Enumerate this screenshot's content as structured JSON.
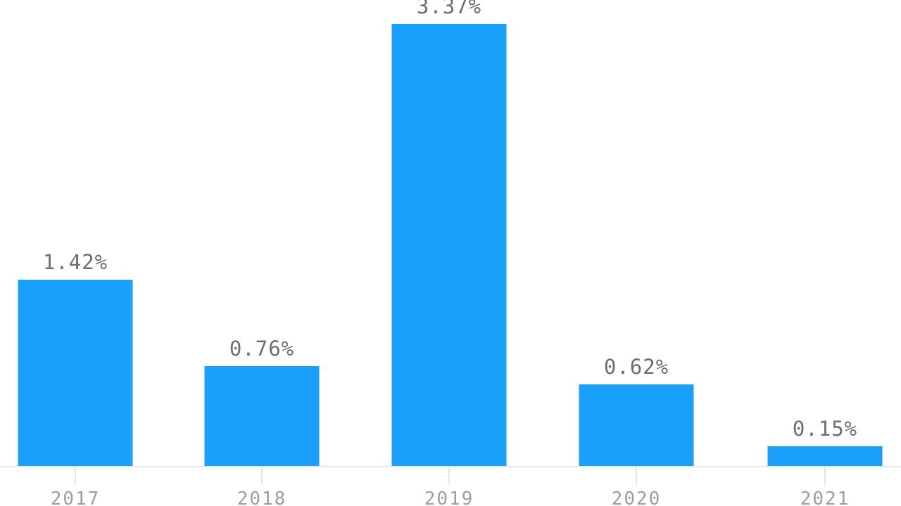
{
  "chart_data": {
    "type": "bar",
    "categories": [
      "2017",
      "2018",
      "2019",
      "2020",
      "2021"
    ],
    "values": [
      1.42,
      0.76,
      3.37,
      0.62,
      0.15
    ],
    "value_labels": [
      "1.42%",
      "0.76%",
      "3.37%",
      "0.62%",
      "0.15%"
    ],
    "title": "",
    "xlabel": "",
    "ylabel": "",
    "ylim": [
      0,
      3.37
    ],
    "grid": false,
    "legend": false,
    "colors": {
      "bar": "#18a0fb",
      "value_label": "#6e6e6e",
      "axis_label": "#9e9e9e",
      "axis_line": "#e8e8e8",
      "tick": "#e5e5e5",
      "background": "#ffffff"
    }
  }
}
